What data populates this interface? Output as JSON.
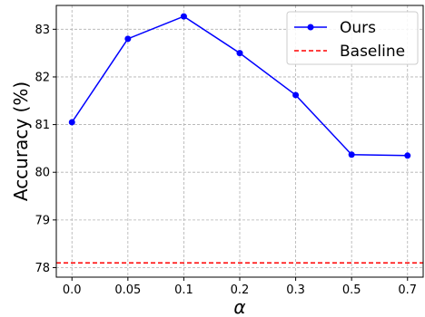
{
  "chart_data": {
    "type": "line",
    "title": "",
    "xlabel": "α",
    "ylabel": "Accuracy (%)",
    "categories": [
      "0.0",
      "0.05",
      "0.1",
      "0.2",
      "0.3",
      "0.5",
      "0.7"
    ],
    "ylim": [
      77.8,
      83.5
    ],
    "yticks": [
      "78",
      "79",
      "80",
      "81",
      "82",
      "83"
    ],
    "grid": true,
    "legend_position": "top-right",
    "series": [
      {
        "name": "Ours",
        "values": [
          81.05,
          82.8,
          83.27,
          82.5,
          81.62,
          80.37,
          80.35
        ],
        "color": "#0000ff",
        "marker": "circle",
        "line_style": "solid"
      },
      {
        "name": "Baseline",
        "constant": 78.1,
        "color": "#ff0000",
        "line_style": "dashed"
      }
    ]
  }
}
